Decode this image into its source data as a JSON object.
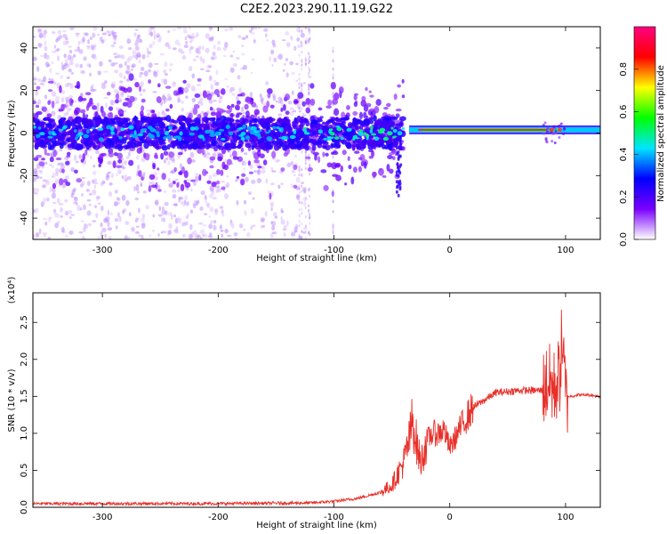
{
  "title": "C2E2.2023.290.11.19.G22",
  "chart_data": [
    {
      "type": "heatmap",
      "xlabel": "Height of straight line (km)",
      "ylabel": "Frequency (Hz)",
      "xlim": [
        -360,
        130
      ],
      "ylim": [
        -50,
        50
      ],
      "xticks": [
        -300,
        -200,
        -100,
        0,
        100
      ],
      "yticks": [
        -40,
        -20,
        0,
        20,
        40
      ],
      "tone_line": {
        "x_start": -35,
        "x_end": 130,
        "y": 1.5
      },
      "colorbar": {
        "label": "Normalized spectral amplitude",
        "range": [
          0,
          1
        ],
        "ticks": [
          "0.0",
          "0.2",
          "0.4",
          "0.6",
          "0.8"
        ],
        "colors": [
          "#ffffff",
          "#7a00ff",
          "#0000ff",
          "#00e5ff",
          "#00ff00",
          "#ffff00",
          "#ff0000",
          "#ff0080"
        ]
      }
    },
    {
      "type": "line",
      "xlabel": "Height of straight line (km)",
      "ylabel": "SNR (10 * v/v)",
      "scale_label": "(x10⁴)",
      "xlim": [
        -360,
        130
      ],
      "ylim": [
        0,
        2.9
      ],
      "xticks": [
        -300,
        -200,
        -100,
        0,
        100
      ],
      "yticks": [
        "0.0",
        "0.5",
        "1.0",
        "1.5",
        "2.0",
        "2.5"
      ],
      "color": "#e8302a",
      "series": [
        {
          "x": [
            -360,
            -200,
            -120,
            -100,
            -80,
            -60,
            -50,
            -45,
            -40,
            -35,
            -32,
            -28,
            -25,
            -20,
            -15,
            -10,
            -5,
            0,
            5,
            10,
            20,
            30,
            40,
            60,
            80,
            85,
            90,
            95,
            97,
            100,
            105,
            110,
            120,
            130
          ],
          "y": [
            0.05,
            0.05,
            0.06,
            0.08,
            0.12,
            0.2,
            0.3,
            0.45,
            0.6,
            0.9,
            1.2,
            0.8,
            0.6,
            0.9,
            1.0,
            1.0,
            1.05,
            0.8,
            0.95,
            1.1,
            1.35,
            1.45,
            1.55,
            1.58,
            1.58,
            1.7,
            1.6,
            1.8,
            2.3,
            1.5,
            1.5,
            1.52,
            1.52,
            1.5
          ]
        }
      ]
    }
  ]
}
